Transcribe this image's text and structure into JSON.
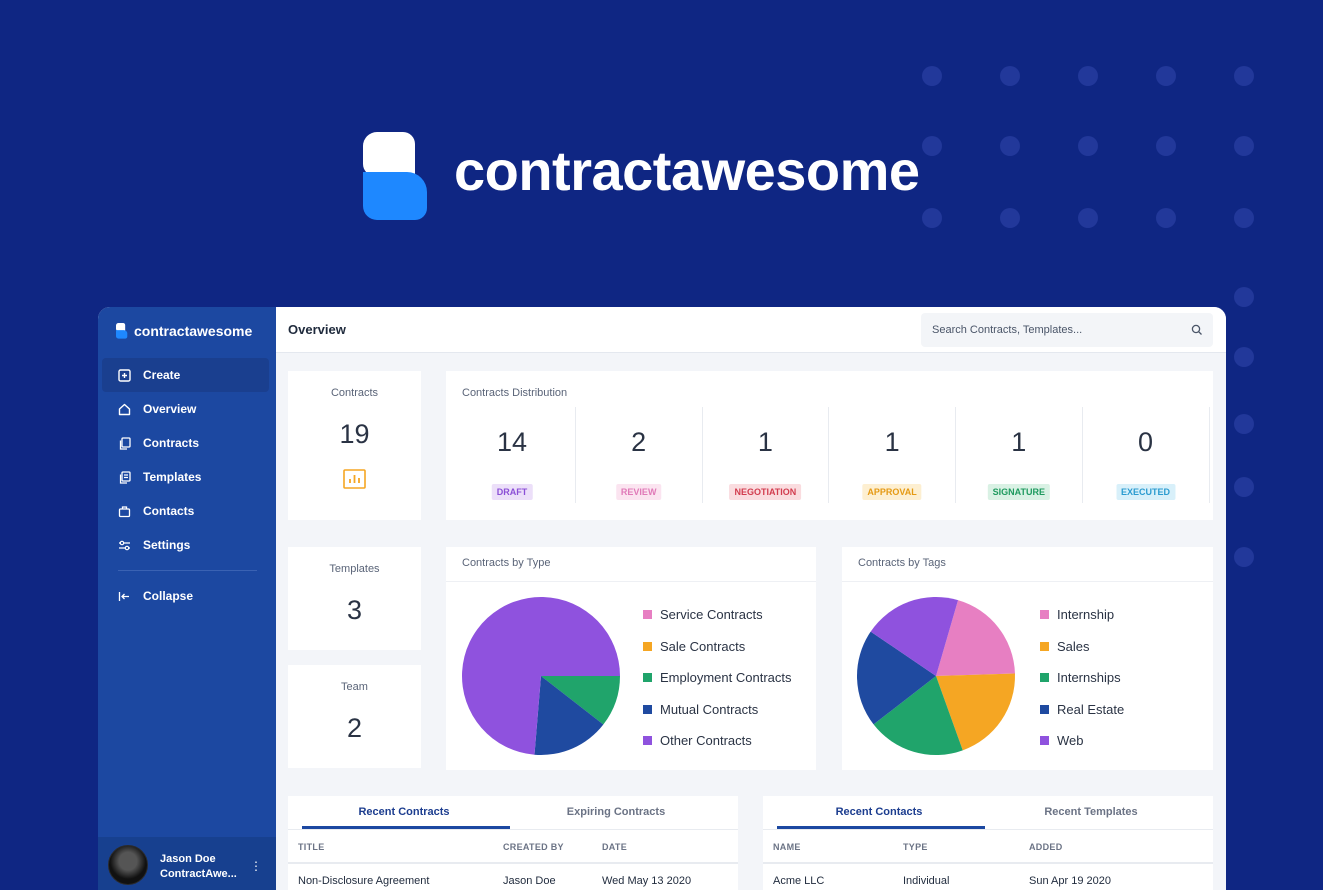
{
  "hero": {
    "brand_name": "contractawesome"
  },
  "sidebar": {
    "brand": "contractawesome",
    "items": [
      {
        "label": "Create",
        "icon": "plus-square-icon"
      },
      {
        "label": "Overview",
        "icon": "home-icon"
      },
      {
        "label": "Contracts",
        "icon": "documents-icon"
      },
      {
        "label": "Templates",
        "icon": "templates-icon"
      },
      {
        "label": "Contacts",
        "icon": "briefcase-icon"
      },
      {
        "label": "Settings",
        "icon": "sliders-icon"
      }
    ],
    "collapse_label": "Collapse",
    "user": {
      "name": "Jason Doe",
      "org": "ContractAwe..."
    }
  },
  "header": {
    "title": "Overview",
    "search_placeholder": "Search Contracts, Templates..."
  },
  "stats": {
    "contracts": {
      "label": "Contracts",
      "value": "19"
    },
    "templates": {
      "label": "Templates",
      "value": "3"
    },
    "team": {
      "label": "Team",
      "value": "2"
    }
  },
  "distribution": {
    "title": "Contracts Distribution",
    "items": [
      {
        "value": "14",
        "label": "DRAFT",
        "color": "#8b4fd6",
        "bg": "#ecdff9"
      },
      {
        "value": "2",
        "label": "REVIEW",
        "color": "#e07ab8",
        "bg": "#fbe4f0"
      },
      {
        "value": "1",
        "label": "NEGOTIATION",
        "color": "#d23d4f",
        "bg": "#fadcdf"
      },
      {
        "value": "1",
        "label": "APPROVAL",
        "color": "#e59a14",
        "bg": "#fdefd1"
      },
      {
        "value": "1",
        "label": "SIGNATURE",
        "color": "#1f9a5f",
        "bg": "#d9f1e4"
      },
      {
        "value": "0",
        "label": "EXECUTED",
        "color": "#2b9bd0",
        "bg": "#d8f0fa"
      }
    ]
  },
  "chart_data": [
    {
      "type": "pie",
      "title": "Contracts by Type",
      "labels": [
        "Service Contracts",
        "Sale Contracts",
        "Employment Contracts",
        "Mutual Contracts",
        "Other Contracts"
      ],
      "values": [
        0,
        0,
        2,
        3,
        14
      ],
      "colors": [
        "#e77fc2",
        "#f5a623",
        "#20a46b",
        "#1f4aa0",
        "#8f52de"
      ]
    },
    {
      "type": "pie",
      "title": "Contracts by Tags",
      "labels": [
        "Internship",
        "Sales",
        "Internships",
        "Real Estate",
        "Web"
      ],
      "values": [
        1,
        1,
        1,
        1,
        1
      ],
      "colors": [
        "#e77fc2",
        "#f5a623",
        "#20a46b",
        "#1f4aa0",
        "#8f52de"
      ]
    }
  ],
  "recent_contracts": {
    "tabs": [
      "Recent Contracts",
      "Expiring Contracts"
    ],
    "columns": [
      "TITLE",
      "CREATED BY",
      "DATE"
    ],
    "rows": [
      [
        "Non-Disclosure Agreement",
        "Jason Doe",
        "Wed May 13 2020"
      ]
    ]
  },
  "recent_contacts": {
    "tabs": [
      "Recent Contacts",
      "Recent Templates"
    ],
    "columns": [
      "NAME",
      "TYPE",
      "ADDED"
    ],
    "rows": [
      [
        "Acme LLC",
        "Individual",
        "Sun Apr 19 2020"
      ]
    ]
  },
  "colors": {
    "brand_navy": "#0f2683",
    "sidebar_blue": "#1c48a1",
    "logo_blue": "#1e88ff"
  }
}
